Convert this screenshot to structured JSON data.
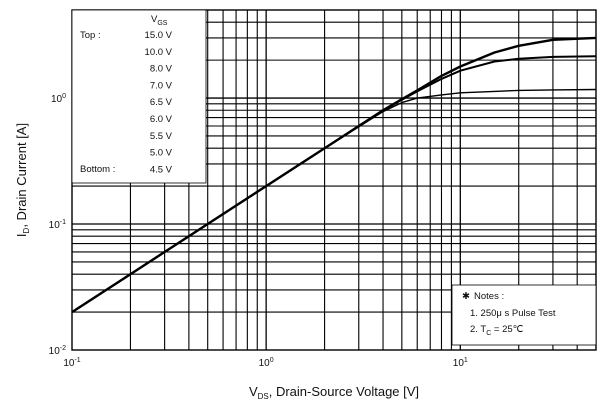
{
  "chart_data": {
    "type": "line",
    "xlabel_main": "V",
    "xlabel_sub": "DS",
    "xlabel_rest": ", Drain-Source Voltage [V]",
    "ylabel_main": "I",
    "ylabel_sub": "D",
    "ylabel_rest": ", Drain Current [A]",
    "xscale": "log",
    "yscale": "log",
    "xlim": [
      0.1,
      50
    ],
    "ylim": [
      0.01,
      5
    ],
    "grid": true,
    "x_ticks": [
      {
        "value": 0.1,
        "base": "10",
        "exp": "-1"
      },
      {
        "value": 1,
        "base": "10",
        "exp": "0"
      },
      {
        "value": 10,
        "base": "10",
        "exp": "1"
      }
    ],
    "y_ticks": [
      {
        "value": 0.01,
        "base": "10",
        "exp": "-2"
      },
      {
        "value": 0.1,
        "base": "10",
        "exp": "-1"
      },
      {
        "value": 1,
        "base": "10",
        "exp": "0"
      }
    ],
    "legend": {
      "header_main": "V",
      "header_sub": "GS",
      "top_label": "Top :",
      "bottom_label": "Bottom :",
      "entries": [
        "15.0 V",
        "10.0 V",
        "8.0 V",
        "7.0 V",
        "6.5 V",
        "6.0 V",
        "5.5 V",
        "5.0 V",
        "4.5 V"
      ]
    },
    "series": [
      {
        "x": [
          0.1,
          0.2,
          0.5,
          1,
          2,
          4,
          5,
          6,
          8,
          10,
          15,
          20,
          30,
          50
        ],
        "y": [
          0.02,
          0.04,
          0.1,
          0.2,
          0.4,
          0.78,
          0.92,
          1.0,
          1.06,
          1.1,
          1.13,
          1.15,
          1.16,
          1.17
        ]
      },
      {
        "x": [
          0.1,
          0.2,
          0.5,
          1,
          2,
          4,
          5,
          6,
          8,
          10,
          15,
          20,
          30,
          50
        ],
        "y": [
          0.02,
          0.04,
          0.1,
          0.2,
          0.4,
          0.79,
          0.97,
          1.13,
          1.42,
          1.65,
          1.95,
          2.05,
          2.12,
          2.15
        ]
      },
      {
        "x": [
          0.1,
          0.2,
          0.5,
          1,
          2,
          4,
          5,
          6,
          8,
          10,
          15,
          20,
          30,
          50
        ],
        "y": [
          0.02,
          0.04,
          0.1,
          0.2,
          0.4,
          0.8,
          0.98,
          1.15,
          1.5,
          1.78,
          2.3,
          2.6,
          2.9,
          3.0
        ]
      }
    ],
    "notes": {
      "title": "Notes :",
      "line1": "1. 250μ s Pulse Test",
      "line2_main": "2. T",
      "line2_sub": "C",
      "line2_rest": " = 25℃"
    }
  }
}
